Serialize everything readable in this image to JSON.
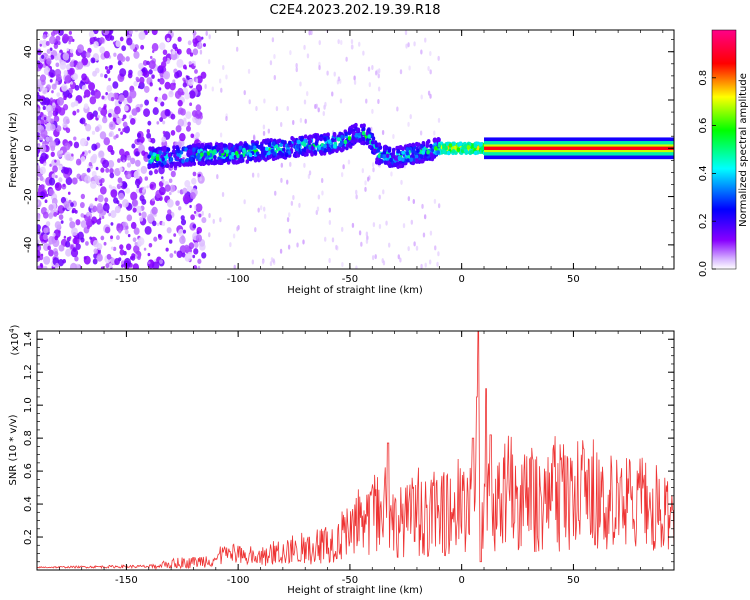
{
  "title": "C2E4.2023.202.19.39.R18",
  "chart_data": [
    {
      "type": "heatmap",
      "xlabel": "Height of straight line (km)",
      "ylabel": "Frequency (Hz)",
      "xlim": [
        -190,
        95
      ],
      "ylim": [
        -50,
        49
      ],
      "x_ticks": [
        -150,
        -100,
        -50,
        0,
        50
      ],
      "y_ticks": [
        -40,
        -20,
        0,
        20,
        40
      ],
      "grid": false,
      "colorbar": {
        "label": "Normalized spectral amplitude",
        "range": [
          0,
          1
        ],
        "ticks": [
          0.0,
          0.2,
          0.4,
          0.6,
          0.8
        ],
        "tick_labels": [
          "0.0",
          "0.2",
          "0.4",
          "0.6",
          "0.8"
        ],
        "colors": [
          "#ffffff",
          "#8800ff",
          "#0000ff",
          "#00ffff",
          "#00ff00",
          "#ffff00",
          "#ff0000",
          "#ff00aa"
        ]
      },
      "ridge": [
        {
          "x": -135,
          "f": -4
        },
        {
          "x": -125,
          "f": -3
        },
        {
          "x": -115,
          "f": -2.5
        },
        {
          "x": -100,
          "f": -2
        },
        {
          "x": -90,
          "f": -1
        },
        {
          "x": -80,
          "f": 0
        },
        {
          "x": -70,
          "f": 1
        },
        {
          "x": -60,
          "f": 2
        },
        {
          "x": -52,
          "f": 3
        },
        {
          "x": -46,
          "f": 7
        },
        {
          "x": -41,
          "f": 4
        },
        {
          "x": -38,
          "f": -2
        },
        {
          "x": -30,
          "f": -4
        },
        {
          "x": -20,
          "f": -2
        },
        {
          "x": -10,
          "f": 0
        },
        {
          "x": 0,
          "f": 0
        },
        {
          "x": 15,
          "f": 0
        },
        {
          "x": 95,
          "f": 0
        }
      ]
    },
    {
      "type": "line",
      "xlabel": "Height of straight line (km)",
      "ylabel": "SNR (10 * v/v)",
      "y_multiplier": "(x10",
      "y_multiplier_exp": "4",
      "y_multiplier_close": ")",
      "xlim": [
        -190,
        95
      ],
      "ylim": [
        0,
        1.45
      ],
      "x_ticks": [
        -150,
        -100,
        -50,
        0,
        50
      ],
      "y_ticks": [
        0.2,
        0.4,
        0.6,
        0.8,
        1.0,
        1.2,
        1.4
      ],
      "y_tick_labels": [
        "0.2",
        "0.4",
        "0.6",
        "0.8",
        "1.0",
        "1.2",
        "1.4"
      ],
      "grid": false,
      "series": [
        {
          "color": "#ee3333",
          "envelope": [
            {
              "x": -190,
              "y": 0.02
            },
            {
              "x": -150,
              "y": 0.03
            },
            {
              "x": -140,
              "y": 0.03
            },
            {
              "x": -130,
              "y": 0.06
            },
            {
              "x": -120,
              "y": 0.08
            },
            {
              "x": -110,
              "y": 0.12
            },
            {
              "x": -100,
              "y": 0.14
            },
            {
              "x": -90,
              "y": 0.12
            },
            {
              "x": -80,
              "y": 0.18
            },
            {
              "x": -70,
              "y": 0.2
            },
            {
              "x": -60,
              "y": 0.28
            },
            {
              "x": -50,
              "y": 0.36
            },
            {
              "x": -45,
              "y": 0.45
            },
            {
              "x": -40,
              "y": 0.5
            },
            {
              "x": -35,
              "y": 0.62
            },
            {
              "x": -30,
              "y": 0.5
            },
            {
              "x": -20,
              "y": 0.55
            },
            {
              "x": -10,
              "y": 0.55
            },
            {
              "x": 0,
              "y": 0.62
            },
            {
              "x": 10,
              "y": 0.65
            },
            {
              "x": 20,
              "y": 0.72
            },
            {
              "x": 30,
              "y": 0.7
            },
            {
              "x": 40,
              "y": 0.72
            },
            {
              "x": 50,
              "y": 0.68
            },
            {
              "x": 60,
              "y": 0.7
            },
            {
              "x": 70,
              "y": 0.62
            },
            {
              "x": 80,
              "y": 0.6
            },
            {
              "x": 90,
              "y": 0.55
            },
            {
              "x": 95,
              "y": 0.5
            }
          ],
          "spikes": [
            {
              "x": -33,
              "y": 0.77
            },
            {
              "x": 5,
              "y": 0.8
            },
            {
              "x": 7,
              "y": 1.05
            },
            {
              "x": 7.5,
              "y": 1.45
            },
            {
              "x": 11,
              "y": 1.1
            },
            {
              "x": 13,
              "y": 0.82
            }
          ]
        }
      ]
    }
  ]
}
